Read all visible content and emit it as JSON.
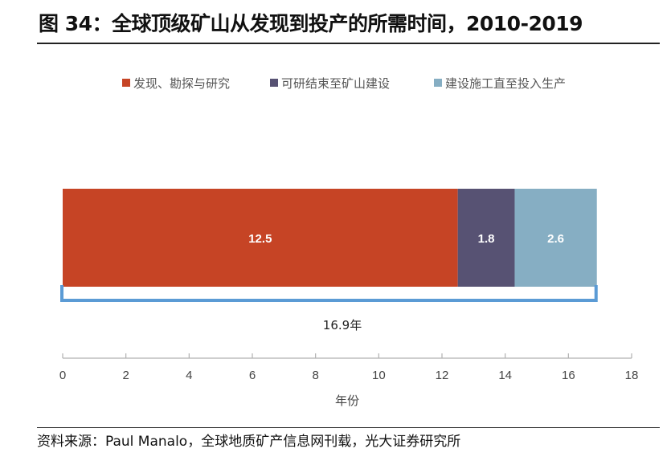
{
  "figure": {
    "title": "图 34：全球顶级矿山从发现到投产的所需时间，2010-2019",
    "source": "资料来源：Paul Manalo，全球地质矿产信息网刊载，光大证券研究所"
  },
  "chart_data": {
    "type": "bar",
    "orientation": "horizontal",
    "stacked": true,
    "categories": [
      ""
    ],
    "series": [
      {
        "name": "发现、勘探与研究",
        "values": [
          12.5
        ],
        "color": "#c64425",
        "label": "12.5"
      },
      {
        "name": "可研结束至矿山建设",
        "values": [
          1.8
        ],
        "color": "#575273",
        "label": "1.8"
      },
      {
        "name": "建设施工直至投入生产",
        "values": [
          2.6
        ],
        "color": "#86aec3",
        "label": "2.6"
      }
    ],
    "total": 16.9,
    "total_label": "16.9年",
    "xlabel": "年份",
    "ylabel": "",
    "xlim": [
      0,
      18
    ],
    "xticks": [
      "0",
      "2",
      "4",
      "6",
      "8",
      "10",
      "12",
      "14",
      "16",
      "18"
    ],
    "legend_position": "top",
    "grid": false,
    "bracket_color": "#5b9bd5"
  }
}
